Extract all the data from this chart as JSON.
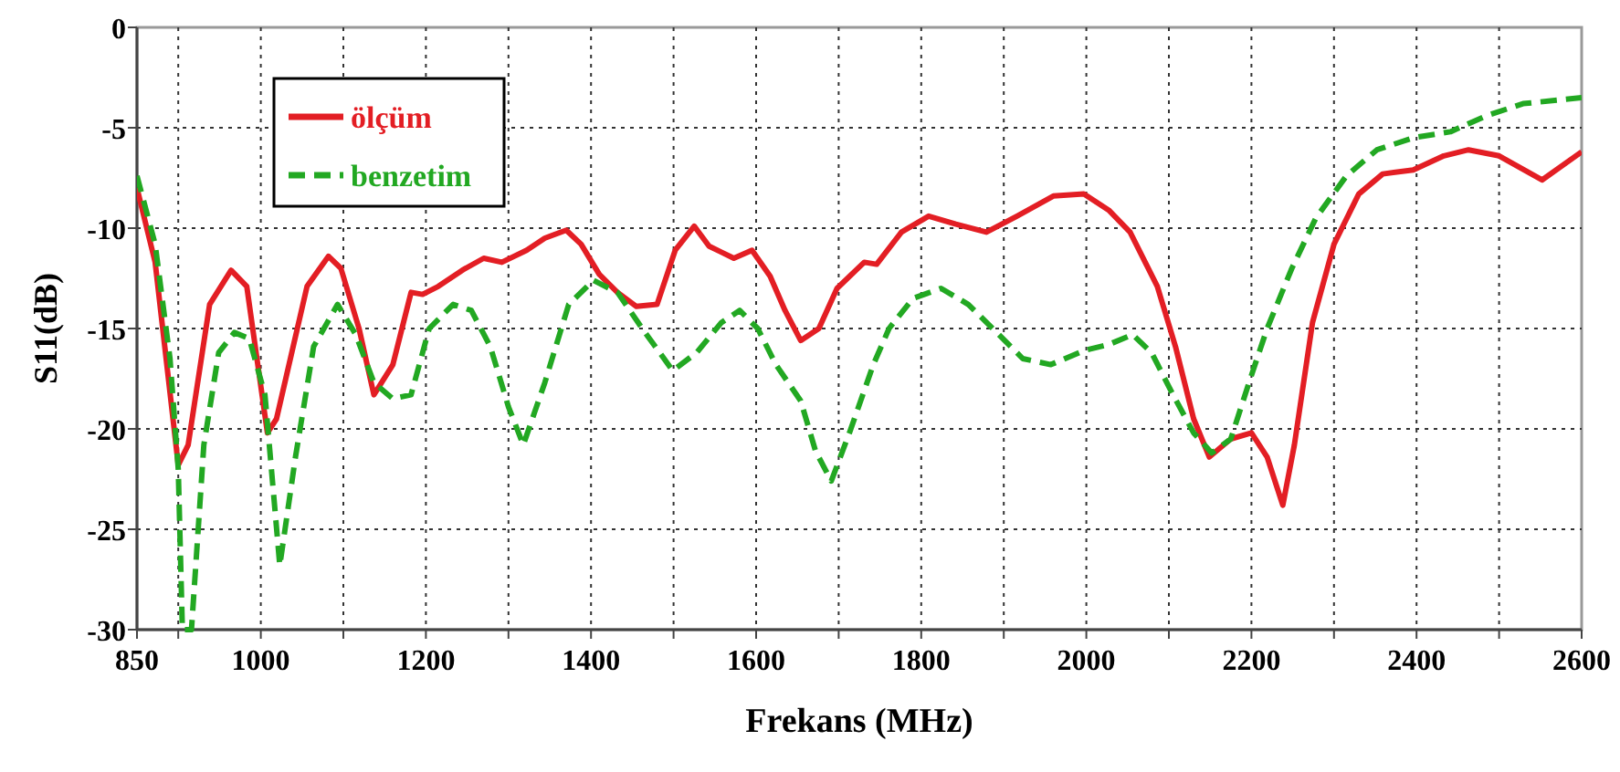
{
  "chart_data": {
    "type": "line",
    "xlabel": "Frekans (MHz)",
    "ylabel": "S11(dB)",
    "xlim": [
      850,
      2600
    ],
    "xticks": [
      850,
      {
        "value": 900,
        "label": null
      },
      1000,
      {
        "value": 1100,
        "label": null
      },
      1200,
      {
        "value": 1300,
        "label": null
      },
      1400,
      {
        "value": 1500,
        "label": null
      },
      1600,
      {
        "value": 1700,
        "label": null
      },
      1800,
      {
        "value": 1900,
        "label": null
      },
      2000,
      {
        "value": 2100,
        "label": null
      },
      2200,
      {
        "value": 2300,
        "label": null
      },
      2400,
      {
        "value": 2500,
        "label": null
      },
      2600
    ],
    "ylim": [
      -30,
      0
    ],
    "yticks": [
      -30,
      -25,
      -20,
      -15,
      -10,
      -5,
      0
    ],
    "grid": true,
    "legend": "top left",
    "marker": "none",
    "series": [
      {
        "name": "ölçüm",
        "color": "#e31e24",
        "line_style": "solid",
        "x": [
          850,
          872,
          900,
          912,
          938,
          964,
          983,
          1008,
          1019,
          1056,
          1082,
          1097,
          1119,
          1137,
          1160,
          1182,
          1196,
          1215,
          1244,
          1270,
          1292,
          1322,
          1344,
          1370,
          1388,
          1410,
          1432,
          1455,
          1480,
          1502,
          1525,
          1543,
          1558,
          1573,
          1595,
          1617,
          1635,
          1654,
          1676,
          1698,
          1731,
          1746,
          1776,
          1809,
          1842,
          1879,
          1916,
          1960,
          1997,
          2027,
          2053,
          2086,
          2108,
          2130,
          2149,
          2175,
          2200,
          2219,
          2238,
          2252,
          2274,
          2300,
          2330,
          2359,
          2396,
          2433,
          2463,
          2500,
          2552,
          2600
        ],
        "values": [
          -8,
          -11.7,
          -21.8,
          -20.8,
          -13.8,
          -12.1,
          -12.9,
          -20.2,
          -19.5,
          -12.9,
          -11.4,
          -12,
          -15,
          -18.3,
          -16.8,
          -13.2,
          -13.3,
          -12.9,
          -12.1,
          -11.5,
          -11.7,
          -11.1,
          -10.5,
          -10.1,
          -10.8,
          -12.3,
          -13.2,
          -13.9,
          -13.8,
          -11.1,
          -9.9,
          -10.9,
          -11.2,
          -11.5,
          -11.1,
          -12.4,
          -14.1,
          -15.6,
          -15,
          -13,
          -11.7,
          -11.8,
          -10.2,
          -9.4,
          -9.8,
          -10.2,
          -9.4,
          -8.4,
          -8.3,
          -9.1,
          -10.2,
          -12.9,
          -15.9,
          -19.5,
          -21.4,
          -20.5,
          -20.2,
          -21.4,
          -23.8,
          -20.8,
          -14.7,
          -10.8,
          -8.3,
          -7.3,
          -7.1,
          -6.4,
          -6.1,
          -6.4,
          -7.6,
          -6.2
        ]
      },
      {
        "name": "benzetim",
        "color": "#22a822",
        "line_style": "dashed",
        "x": [
          850,
          872,
          890,
          900,
          905,
          916,
          931,
          949,
          968,
          986,
          1005,
          1023,
          1042,
          1064,
          1093,
          1115,
          1137,
          1160,
          1182,
          1204,
          1233,
          1255,
          1278,
          1300,
          1318,
          1344,
          1373,
          1403,
          1432,
          1462,
          1499,
          1528,
          1558,
          1580,
          1602,
          1624,
          1654,
          1672,
          1691,
          1713,
          1742,
          1761,
          1790,
          1824,
          1857,
          1894,
          1923,
          1957,
          1997,
          2027,
          2056,
          2079,
          2105,
          2130,
          2152,
          2175,
          2197,
          2219,
          2249,
          2278,
          2315,
          2352,
          2396,
          2441,
          2485,
          2529,
          2600
        ],
        "values": [
          -7.4,
          -10.8,
          -16.5,
          -22,
          -30,
          -30,
          -20.8,
          -16.2,
          -15.2,
          -15.5,
          -18.3,
          -26.8,
          -21.4,
          -15.9,
          -13.8,
          -15.3,
          -17.7,
          -18.5,
          -18.3,
          -15,
          -13.8,
          -14.1,
          -15.9,
          -18.9,
          -20.8,
          -17.7,
          -13.8,
          -12.6,
          -13.2,
          -15,
          -17.1,
          -16.2,
          -14.7,
          -14.1,
          -15,
          -16.8,
          -18.6,
          -21.1,
          -22.6,
          -20.2,
          -16.8,
          -15,
          -13.5,
          -13,
          -13.8,
          -15.3,
          -16.5,
          -16.8,
          -16.1,
          -15.8,
          -15.3,
          -16.2,
          -18.3,
          -20.2,
          -21.2,
          -20.5,
          -17.7,
          -15,
          -12,
          -9.5,
          -7.4,
          -6.1,
          -5.5,
          -5.2,
          -4.4,
          -3.8,
          -3.5
        ]
      }
    ]
  }
}
